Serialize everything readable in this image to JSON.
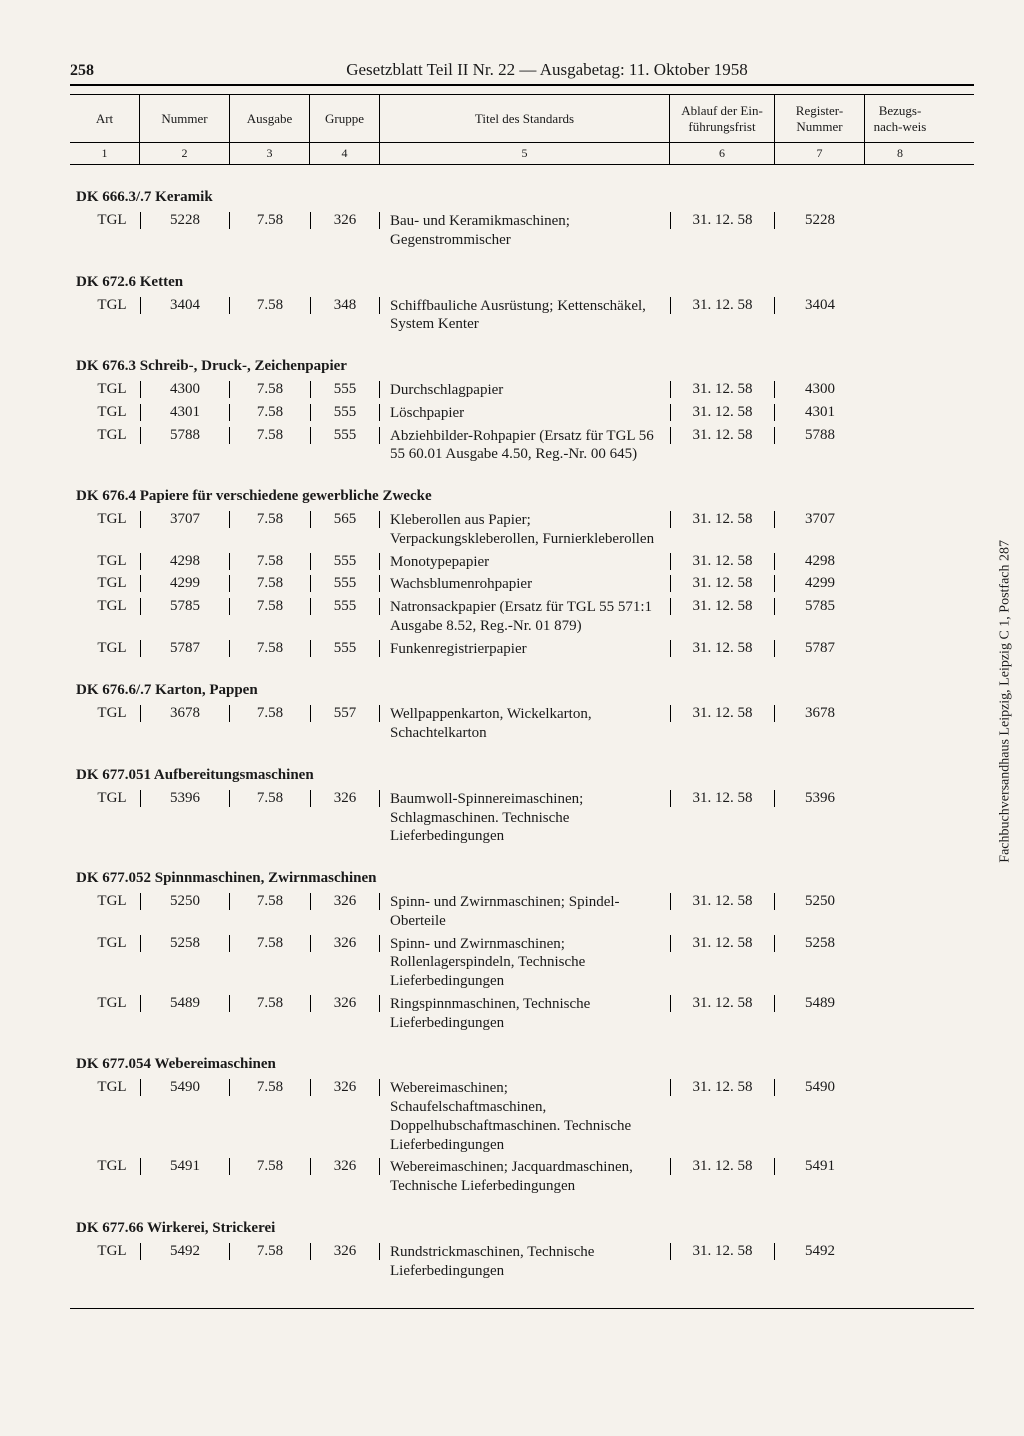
{
  "page_number": "258",
  "header_title": "Gesetzblatt Teil II Nr. 22 — Ausgabetag: 11. Oktober 1958",
  "side_text": "Fachbuchversandhaus Leipzig, Leipzig C 1, Postfach 287",
  "columns": {
    "headers": [
      "Art",
      "Nummer",
      "Ausgabe",
      "Gruppe",
      "Titel des Standards",
      "Ablauf der Ein-führungsfrist",
      "Register-Nummer",
      "Bezugs-nach-weis"
    ],
    "numbers": [
      "1",
      "2",
      "3",
      "4",
      "5",
      "6",
      "7",
      "8"
    ]
  },
  "sections": [
    {
      "title": "DK 666.3/.7 Keramik",
      "rows": [
        {
          "art": "TGL",
          "nummer": "5228",
          "ausgabe": "7.58",
          "gruppe": "326",
          "titel": "Bau- und Keramikmaschinen; Gegenstrommischer",
          "ablauf": "31. 12. 58",
          "reg": "5228",
          "bez": ""
        }
      ]
    },
    {
      "title": "DK 672.6 Ketten",
      "rows": [
        {
          "art": "TGL",
          "nummer": "3404",
          "ausgabe": "7.58",
          "gruppe": "348",
          "titel": "Schiffbauliche Ausrüstung; Kettenschäkel, System Kenter",
          "ablauf": "31. 12. 58",
          "reg": "3404",
          "bez": ""
        }
      ]
    },
    {
      "title": "DK 676.3 Schreib-, Druck-, Zeichenpapier",
      "rows": [
        {
          "art": "TGL",
          "nummer": "4300",
          "ausgabe": "7.58",
          "gruppe": "555",
          "titel": "Durchschlagpapier",
          "ablauf": "31. 12. 58",
          "reg": "4300",
          "bez": ""
        },
        {
          "art": "TGL",
          "nummer": "4301",
          "ausgabe": "7.58",
          "gruppe": "555",
          "titel": "Löschpapier",
          "ablauf": "31. 12. 58",
          "reg": "4301",
          "bez": ""
        },
        {
          "art": "TGL",
          "nummer": "5788",
          "ausgabe": "7.58",
          "gruppe": "555",
          "titel": "Abziehbilder-Rohpapier (Ersatz für TGL 56 55 60.01 Ausgabe 4.50, Reg.-Nr. 00 645)",
          "ablauf": "31. 12. 58",
          "reg": "5788",
          "bez": ""
        }
      ]
    },
    {
      "title": "DK 676.4 Papiere für verschiedene gewerbliche Zwecke",
      "rows": [
        {
          "art": "TGL",
          "nummer": "3707",
          "ausgabe": "7.58",
          "gruppe": "565",
          "titel": "Kleberollen aus Papier; Verpackungskleberollen, Furnierkleberollen",
          "ablauf": "31. 12. 58",
          "reg": "3707",
          "bez": ""
        },
        {
          "art": "TGL",
          "nummer": "4298",
          "ausgabe": "7.58",
          "gruppe": "555",
          "titel": "Monotypepapier",
          "ablauf": "31. 12. 58",
          "reg": "4298",
          "bez": ""
        },
        {
          "art": "TGL",
          "nummer": "4299",
          "ausgabe": "7.58",
          "gruppe": "555",
          "titel": "Wachsblumenrohpapier",
          "ablauf": "31. 12. 58",
          "reg": "4299",
          "bez": ""
        },
        {
          "art": "TGL",
          "nummer": "5785",
          "ausgabe": "7.58",
          "gruppe": "555",
          "titel": "Natronsackpapier (Ersatz für TGL 55 571:1 Ausgabe 8.52, Reg.-Nr. 01 879)",
          "ablauf": "31. 12. 58",
          "reg": "5785",
          "bez": ""
        },
        {
          "art": "TGL",
          "nummer": "5787",
          "ausgabe": "7.58",
          "gruppe": "555",
          "titel": "Funkenregistrierpapier",
          "ablauf": "31. 12. 58",
          "reg": "5787",
          "bez": ""
        }
      ]
    },
    {
      "title": "DK 676.6/.7 Karton, Pappen",
      "rows": [
        {
          "art": "TGL",
          "nummer": "3678",
          "ausgabe": "7.58",
          "gruppe": "557",
          "titel": "Wellpappenkarton, Wickelkarton, Schachtelkarton",
          "ablauf": "31. 12. 58",
          "reg": "3678",
          "bez": ""
        }
      ]
    },
    {
      "title": "DK 677.051 Aufbereitungsmaschinen",
      "rows": [
        {
          "art": "TGL",
          "nummer": "5396",
          "ausgabe": "7.58",
          "gruppe": "326",
          "titel": "Baumwoll-Spinnereimaschinen; Schlagmaschinen. Technische Lieferbedingungen",
          "ablauf": "31. 12. 58",
          "reg": "5396",
          "bez": ""
        }
      ]
    },
    {
      "title": "DK 677.052 Spinnmaschinen, Zwirnmaschinen",
      "rows": [
        {
          "art": "TGL",
          "nummer": "5250",
          "ausgabe": "7.58",
          "gruppe": "326",
          "titel": "Spinn- und Zwirnmaschinen; Spindel-Oberteile",
          "ablauf": "31. 12. 58",
          "reg": "5250",
          "bez": ""
        },
        {
          "art": "TGL",
          "nummer": "5258",
          "ausgabe": "7.58",
          "gruppe": "326",
          "titel": "Spinn- und Zwirnmaschinen; Rollenlagerspindeln, Technische Lieferbedingungen",
          "ablauf": "31. 12. 58",
          "reg": "5258",
          "bez": ""
        },
        {
          "art": "TGL",
          "nummer": "5489",
          "ausgabe": "7.58",
          "gruppe": "326",
          "titel": "Ringspinnmaschinen, Technische Lieferbedingungen",
          "ablauf": "31. 12. 58",
          "reg": "5489",
          "bez": ""
        }
      ]
    },
    {
      "title": "DK 677.054 Webereimaschinen",
      "rows": [
        {
          "art": "TGL",
          "nummer": "5490",
          "ausgabe": "7.58",
          "gruppe": "326",
          "titel": "Webereimaschinen; Schaufelschaftmaschinen, Doppelhubschaftmaschinen. Technische Lieferbedingungen",
          "ablauf": "31. 12. 58",
          "reg": "5490",
          "bez": ""
        },
        {
          "art": "TGL",
          "nummer": "5491",
          "ausgabe": "7.58",
          "gruppe": "326",
          "titel": "Webereimaschinen; Jacquardmaschinen, Technische Lieferbedingungen",
          "ablauf": "31. 12. 58",
          "reg": "5491",
          "bez": ""
        }
      ]
    },
    {
      "title": "DK 677.66 Wirkerei, Strickerei",
      "rows": [
        {
          "art": "TGL",
          "nummer": "5492",
          "ausgabe": "7.58",
          "gruppe": "326",
          "titel": "Rundstrickmaschinen, Technische Lieferbedingungen",
          "ablauf": "31. 12. 58",
          "reg": "5492",
          "bez": ""
        }
      ]
    }
  ]
}
